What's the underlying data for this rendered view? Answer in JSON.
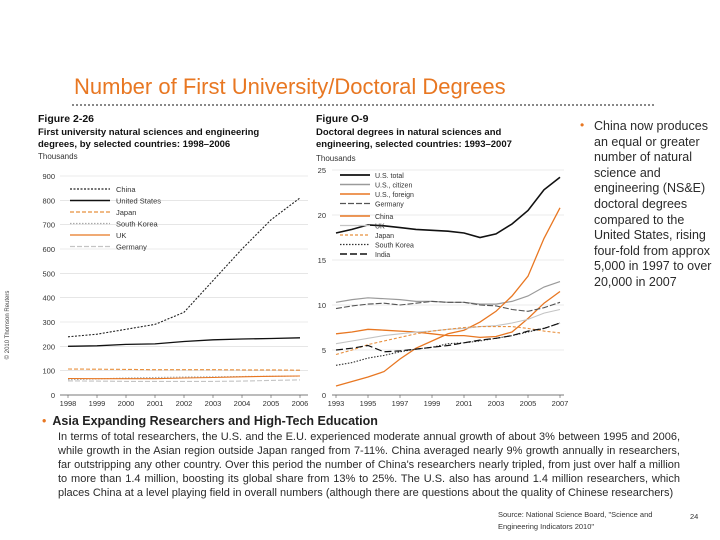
{
  "copyright": "© 2010 Thomson Reuters",
  "slide_title": "Number of First University/Doctoral Degrees",
  "bullet1": "China now produces an equal or greater number of natural science and engineering (NS&E) doctoral degrees compared to the United States, rising four-fold from approx 5,000 in 1997 to over 20,000 in 2007",
  "bullet2_heading": "Asia Expanding Researchers and High-Tech Education",
  "bullet2_body": "In terms of total researchers, the U.S. and the E.U. experienced moderate annual growth of about 3% between 1995 and 2006, while growth in the Asian region outside Japan ranged from 7-11%. China averaged nearly 9% growth annually in researchers, far outstripping any other country. Over this period the number of China's researchers nearly tripled, from just over half a million to more than 1.4 million, boosting its global share from 13% to 25%. The U.S. also has around 1.4 million researchers, which places China at a level playing field in overall numbers (although there are questions about the quality of Chinese researchers)",
  "source": "Source: National Science Board, \"Science and Engineering Indicators 2010\"",
  "page_number": "24",
  "colors": {
    "accent": "#e87722",
    "china": "#222222",
    "us": "#111111",
    "japan": "#e8903f",
    "south_korea": "#aaaaaa",
    "uk": "#e87722",
    "germany": "#c4c4c4",
    "us_citizen": "#9a9a9a",
    "us_foreign": "#e87722",
    "india": "#111111"
  },
  "chart_data": [
    {
      "type": "line",
      "figure_label": "Figure 2-26",
      "title": "First university natural sciences and engineering degrees, by selected countries: 1998–2006",
      "ylabel": "Thousands",
      "ylim": [
        0,
        900
      ],
      "yticks": [
        "0",
        "100",
        "200",
        "300",
        "400",
        "500",
        "600",
        "700",
        "800",
        "900"
      ],
      "categories": [
        "1998",
        "1999",
        "2000",
        "2001",
        "2002",
        "2003",
        "2004",
        "2005",
        "2006"
      ],
      "series": [
        {
          "name": "China",
          "values": [
            239,
            250,
            270,
            290,
            340,
            470,
            600,
            720,
            810
          ]
        },
        {
          "name": "United States",
          "values": [
            200,
            202,
            208,
            210,
            220,
            227,
            230,
            232,
            235
          ]
        },
        {
          "name": "Japan",
          "values": [
            107,
            106,
            105,
            104,
            104,
            104,
            103,
            103,
            102
          ]
        },
        {
          "name": "South Korea",
          "values": [
            63,
            66,
            70,
            72,
            74,
            75,
            76,
            77,
            78
          ]
        },
        {
          "name": "UK",
          "values": [
            68,
            67,
            67,
            67,
            70,
            72,
            75,
            77,
            78
          ]
        },
        {
          "name": "Germany",
          "values": [
            58,
            57,
            56,
            56,
            56,
            56,
            57,
            60,
            62
          ]
        }
      ]
    },
    {
      "type": "line",
      "figure_label": "Figure O-9",
      "title": "Doctoral degrees in natural sciences and engineering, selected countries: 1993–2007",
      "ylabel": "Thousands",
      "ylim": [
        0,
        25
      ],
      "yticks": [
        "0",
        "5",
        "10",
        "15",
        "20",
        "25"
      ],
      "xticks": [
        "1993",
        "1995",
        "1997",
        "1999",
        "2001",
        "2003",
        "2005",
        "2007"
      ],
      "x": [
        1993,
        1994,
        1995,
        1996,
        1997,
        1998,
        1999,
        2000,
        2001,
        2002,
        2003,
        2004,
        2005,
        2006,
        2007
      ],
      "series": [
        {
          "name": "U.S. total",
          "values": [
            18.0,
            18.4,
            18.9,
            18.8,
            18.6,
            18.4,
            18.3,
            18.2,
            18.0,
            17.5,
            17.9,
            19.0,
            20.5,
            22.8,
            24.2
          ]
        },
        {
          "name": "U.S., citizen",
          "values": [
            10.3,
            10.6,
            10.8,
            10.7,
            10.6,
            10.4,
            10.4,
            10.3,
            10.3,
            10.1,
            10.1,
            10.4,
            11.0,
            12.0,
            12.6
          ]
        },
        {
          "name": "U.S., foreign",
          "values": [
            6.8,
            7.0,
            7.3,
            7.2,
            7.1,
            7.0,
            6.8,
            6.6,
            6.6,
            6.4,
            6.5,
            7.0,
            8.5,
            10.2,
            11.5
          ]
        },
        {
          "name": "Germany",
          "values": [
            9.6,
            9.9,
            10.1,
            10.2,
            10.0,
            10.2,
            10.4,
            10.3,
            10.3,
            10.0,
            9.9,
            9.5,
            9.3,
            9.7,
            10.3
          ]
        },
        {
          "name": "China",
          "values": [
            1.0,
            1.5,
            2.0,
            2.6,
            4.0,
            5.2,
            6.0,
            6.8,
            7.2,
            8.1,
            9.3,
            11.0,
            13.2,
            17.4,
            20.8
          ]
        },
        {
          "name": "UK",
          "values": [
            5.7,
            6.0,
            6.3,
            6.6,
            6.8,
            7.0,
            7.1,
            7.3,
            7.4,
            7.6,
            7.7,
            8.0,
            8.4,
            9.1,
            9.5
          ]
        },
        {
          "name": "Japan",
          "values": [
            4.5,
            5.0,
            5.6,
            6.0,
            6.4,
            6.8,
            7.1,
            7.3,
            7.5,
            7.6,
            7.6,
            7.6,
            7.4,
            7.1,
            6.9
          ]
        },
        {
          "name": "South Korea",
          "values": [
            3.3,
            3.6,
            4.1,
            4.4,
            4.8,
            5.1,
            5.3,
            5.7,
            5.8,
            6.0,
            6.3,
            6.6,
            7.0,
            7.4,
            8.0
          ]
        },
        {
          "name": "India",
          "values": [
            5.0,
            5.2,
            5.5,
            4.8,
            4.9,
            5.1,
            5.3,
            5.5,
            5.8,
            6.1,
            6.3,
            6.6,
            7.1,
            7.4,
            8.0
          ]
        }
      ]
    }
  ]
}
